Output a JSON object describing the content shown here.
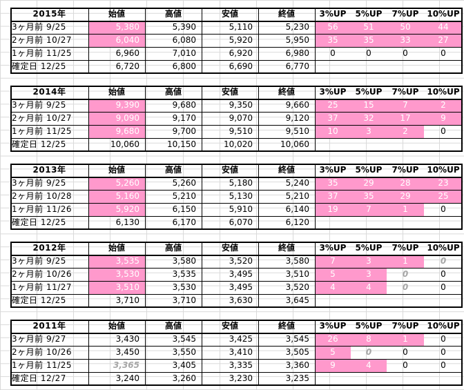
{
  "headers": [
    "始値",
    "高値",
    "安値",
    "終値",
    "3%UP",
    "5%UP",
    "7%UP",
    "10%UP"
  ],
  "blocks": [
    {
      "year": "2015年",
      "rows": [
        {
          "label": "3ヶ月前  9/25",
          "prices": [
            "5,380",
            "5,390",
            "5,110",
            "5,230"
          ],
          "p_pink": [
            true,
            false,
            false,
            false
          ],
          "ups": [
            "56",
            "51",
            "50",
            "44"
          ],
          "u_pink": [
            true,
            true,
            true,
            true
          ],
          "u_ghost": [
            false,
            false,
            false,
            false
          ]
        },
        {
          "label": "2ヶ月前  10/27",
          "prices": [
            "6,040",
            "6,080",
            "5,920",
            "5,950"
          ],
          "p_pink": [
            true,
            false,
            false,
            false
          ],
          "ups": [
            "35",
            "35",
            "33",
            "27"
          ],
          "u_pink": [
            true,
            true,
            true,
            true
          ],
          "u_ghost": [
            false,
            false,
            false,
            false
          ]
        },
        {
          "label": "1ヶ月前  11/25",
          "prices": [
            "6,960",
            "7,010",
            "6,920",
            "6,980"
          ],
          "p_pink": [
            false,
            false,
            false,
            false
          ],
          "ups": [
            "0",
            "0",
            "0",
            "0"
          ],
          "u_pink": [
            false,
            false,
            false,
            false
          ],
          "u_ghost": [
            false,
            false,
            false,
            false
          ]
        },
        {
          "label": "確定日  12/25",
          "prices": [
            "6,720",
            "6,800",
            "6,690",
            "6,770"
          ],
          "p_pink": [
            false,
            false,
            false,
            false
          ],
          "ups": [
            "",
            "",
            "",
            ""
          ],
          "u_pink": [
            false,
            false,
            false,
            false
          ],
          "u_ghost": [
            false,
            false,
            false,
            false
          ]
        }
      ]
    },
    {
      "year": "2014年",
      "rows": [
        {
          "label": "3ヶ月前  9/25",
          "prices": [
            "9,390",
            "9,680",
            "9,350",
            "9,660"
          ],
          "p_pink": [
            true,
            false,
            false,
            false
          ],
          "ups": [
            "25",
            "15",
            "7",
            "2"
          ],
          "u_pink": [
            true,
            true,
            true,
            true
          ],
          "u_ghost": [
            false,
            false,
            false,
            false
          ]
        },
        {
          "label": "2ヶ月前  10/27",
          "prices": [
            "9,090",
            "9,170",
            "9,070",
            "9,120"
          ],
          "p_pink": [
            true,
            false,
            false,
            false
          ],
          "ups": [
            "37",
            "32",
            "17",
            "9"
          ],
          "u_pink": [
            true,
            true,
            true,
            true
          ],
          "u_ghost": [
            false,
            false,
            false,
            false
          ]
        },
        {
          "label": "1ヶ月前  11/25",
          "prices": [
            "9,680",
            "9,700",
            "9,510",
            "9,510"
          ],
          "p_pink": [
            true,
            false,
            false,
            false
          ],
          "ups": [
            "10",
            "3",
            "2",
            "0"
          ],
          "u_pink": [
            true,
            true,
            true,
            false
          ],
          "u_ghost": [
            false,
            false,
            false,
            false
          ]
        },
        {
          "label": "確定日  12/25",
          "prices": [
            "10,060",
            "10,150",
            "10,020",
            "10,060"
          ],
          "p_pink": [
            false,
            false,
            false,
            false
          ],
          "ups": [
            "",
            "",
            "",
            ""
          ],
          "u_pink": [
            false,
            false,
            false,
            false
          ],
          "u_ghost": [
            false,
            false,
            false,
            false
          ]
        }
      ]
    },
    {
      "year": "2013年",
      "rows": [
        {
          "label": "3ヶ月前  9/25",
          "prices": [
            "5,260",
            "5,260",
            "5,180",
            "5,240"
          ],
          "p_pink": [
            true,
            false,
            false,
            false
          ],
          "ups": [
            "35",
            "29",
            "28",
            "23"
          ],
          "u_pink": [
            true,
            true,
            true,
            true
          ],
          "u_ghost": [
            false,
            false,
            false,
            false
          ]
        },
        {
          "label": "2ヶ月前  10/28",
          "prices": [
            "5,160",
            "5,210",
            "5,130",
            "5,210"
          ],
          "p_pink": [
            true,
            false,
            false,
            false
          ],
          "ups": [
            "37",
            "35",
            "29",
            "25"
          ],
          "u_pink": [
            true,
            true,
            true,
            true
          ],
          "u_ghost": [
            false,
            false,
            false,
            false
          ]
        },
        {
          "label": "1ヶ月前  11/26",
          "prices": [
            "5,920",
            "6,150",
            "5,910",
            "6,140"
          ],
          "p_pink": [
            true,
            false,
            false,
            false
          ],
          "ups": [
            "19",
            "7",
            "1",
            "0"
          ],
          "u_pink": [
            true,
            true,
            true,
            false
          ],
          "u_ghost": [
            false,
            false,
            false,
            false
          ]
        },
        {
          "label": "確定日  12/25",
          "prices": [
            "6,130",
            "6,170",
            "6,070",
            "6,120"
          ],
          "p_pink": [
            false,
            false,
            false,
            false
          ],
          "ups": [
            "",
            "",
            "",
            ""
          ],
          "u_pink": [
            false,
            false,
            false,
            false
          ],
          "u_ghost": [
            false,
            false,
            false,
            false
          ]
        }
      ]
    },
    {
      "year": "2012年",
      "rows": [
        {
          "label": "3ヶ月前  9/25",
          "prices": [
            "3,535",
            "3,580",
            "3,520",
            "3,580"
          ],
          "p_pink": [
            true,
            false,
            false,
            false
          ],
          "ups": [
            "7",
            "3",
            "1",
            "0"
          ],
          "u_pink": [
            true,
            true,
            true,
            false
          ],
          "u_ghost": [
            false,
            false,
            false,
            true
          ]
        },
        {
          "label": "2ヶ月前  10/26",
          "prices": [
            "3,530",
            "3,535",
            "3,495",
            "3,510"
          ],
          "p_pink": [
            true,
            false,
            false,
            false
          ],
          "ups": [
            "5",
            "3",
            "0",
            "0"
          ],
          "u_pink": [
            true,
            true,
            false,
            false
          ],
          "u_ghost": [
            false,
            false,
            true,
            false
          ]
        },
        {
          "label": "1ヶ月前  11/27",
          "prices": [
            "3,510",
            "3,530",
            "3,495",
            "3,520"
          ],
          "p_pink": [
            true,
            false,
            false,
            false
          ],
          "ups": [
            "4",
            "4",
            "0",
            "0"
          ],
          "u_pink": [
            true,
            true,
            false,
            false
          ],
          "u_ghost": [
            false,
            false,
            true,
            false
          ]
        },
        {
          "label": "確定日  12/25",
          "prices": [
            "3,710",
            "3,710",
            "3,630",
            "3,645"
          ],
          "p_pink": [
            false,
            false,
            false,
            false
          ],
          "ups": [
            "",
            "",
            "",
            ""
          ],
          "u_pink": [
            false,
            false,
            false,
            false
          ],
          "u_ghost": [
            false,
            false,
            false,
            false
          ]
        }
      ]
    },
    {
      "year": "2011年",
      "rows": [
        {
          "label": "3ヶ月前  9/27",
          "prices": [
            "3,430",
            "3,545",
            "3,425",
            "3,545"
          ],
          "p_pink": [
            false,
            false,
            false,
            false
          ],
          "ups": [
            "26",
            "8",
            "1",
            "0"
          ],
          "u_pink": [
            true,
            true,
            true,
            false
          ],
          "u_ghost": [
            false,
            false,
            false,
            false
          ]
        },
        {
          "label": "2ヶ月前  10/26",
          "prices": [
            "3,450",
            "3,550",
            "3,410",
            "3,505"
          ],
          "p_pink": [
            false,
            false,
            false,
            false
          ],
          "ups": [
            "5",
            "0",
            "0",
            "0"
          ],
          "u_pink": [
            true,
            false,
            false,
            false
          ],
          "u_ghost": [
            false,
            true,
            false,
            false
          ]
        },
        {
          "label": "1ヶ月前  11/25",
          "prices": [
            "3,365",
            "3,405",
            "3,335",
            "3,360"
          ],
          "p_pink": [
            false,
            false,
            false,
            false
          ],
          "p_ghost": [
            true,
            false,
            false,
            false
          ],
          "ups": [
            "9",
            "4",
            "0",
            "0"
          ],
          "u_pink": [
            true,
            true,
            false,
            false
          ],
          "u_ghost": [
            false,
            false,
            false,
            false
          ]
        },
        {
          "label": "確定日  12/27",
          "prices": [
            "3,240",
            "3,260",
            "3,230",
            "3,235"
          ],
          "p_pink": [
            false,
            false,
            false,
            false
          ],
          "ups": [
            "",
            "",
            "",
            ""
          ],
          "u_pink": [
            false,
            false,
            false,
            false
          ],
          "u_ghost": [
            false,
            false,
            false,
            false
          ]
        }
      ]
    }
  ]
}
